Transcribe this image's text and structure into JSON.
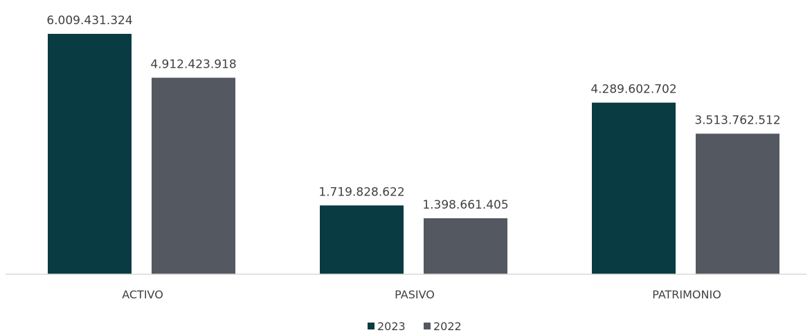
{
  "chart_data": {
    "type": "bar",
    "categories": [
      "ACTIVO",
      "PASIVO",
      "PATRIMONIO"
    ],
    "series": [
      {
        "name": "2023",
        "color": "#083b42",
        "values": [
          6009431324,
          1719828622,
          4289602702
        ],
        "labels": [
          "6.009.431.324",
          "1.719.828.622",
          "4.289.602.702"
        ]
      },
      {
        "name": "2022",
        "color": "#545861",
        "values": [
          4912423918,
          1398661405,
          3513762512
        ],
        "labels": [
          "4.912.423.918",
          "1.398.661.405",
          "3.513.762.512"
        ]
      }
    ],
    "legend_position": "bottom",
    "grid": false,
    "axis_color": "#d9d9d9",
    "label_color": "#404040"
  }
}
